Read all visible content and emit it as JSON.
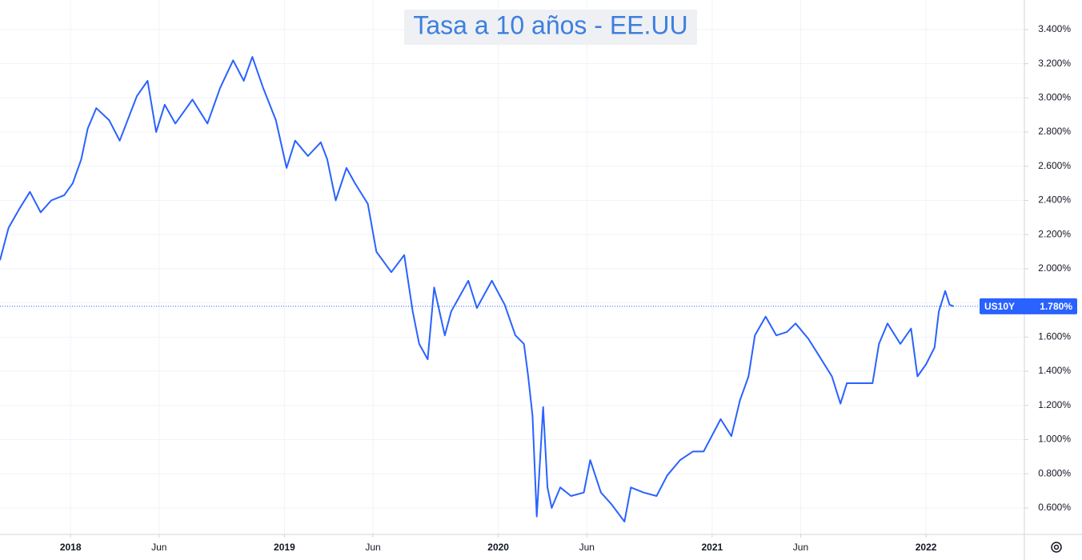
{
  "chart_data": {
    "type": "line",
    "title": "Tasa a 10 años - EE.UU",
    "x": [
      2017.67,
      2017.71,
      2017.76,
      2017.81,
      2017.86,
      2017.91,
      2017.97,
      2018.01,
      2018.05,
      2018.08,
      2018.12,
      2018.18,
      2018.23,
      2018.31,
      2018.36,
      2018.4,
      2018.44,
      2018.49,
      2018.57,
      2018.64,
      2018.7,
      2018.76,
      2018.81,
      2018.85,
      2018.9,
      2018.96,
      2019.01,
      2019.05,
      2019.11,
      2019.17,
      2019.2,
      2019.24,
      2019.29,
      2019.33,
      2019.39,
      2019.43,
      2019.5,
      2019.56,
      2019.6,
      2019.63,
      2019.67,
      2019.7,
      2019.75,
      2019.78,
      2019.86,
      2019.9,
      2019.97,
      2020.03,
      2020.08,
      2020.12,
      2020.14,
      2020.16,
      2020.18,
      2020.21,
      2020.23,
      2020.25,
      2020.29,
      2020.34,
      2020.4,
      2020.43,
      2020.48,
      2020.53,
      2020.59,
      2020.62,
      2020.68,
      2020.74,
      2020.79,
      2020.85,
      2020.91,
      2020.96,
      2021.04,
      2021.09,
      2021.13,
      2021.17,
      2021.2,
      2021.25,
      2021.3,
      2021.35,
      2021.39,
      2021.45,
      2021.5,
      2021.56,
      2021.6,
      2021.63,
      2021.69,
      2021.75,
      2021.78,
      2021.82,
      2021.88,
      2021.93,
      2021.96,
      2022.0,
      2022.04,
      2022.06,
      2022.09,
      2022.11,
      2022.13
    ],
    "series": [
      {
        "name": "US10Y",
        "color": "#2962ff",
        "values": [
          2.05,
          2.24,
          2.35,
          2.45,
          2.33,
          2.4,
          2.43,
          2.5,
          2.64,
          2.82,
          2.94,
          2.87,
          2.75,
          3.01,
          3.1,
          2.8,
          2.96,
          2.85,
          2.99,
          2.85,
          3.06,
          3.22,
          3.1,
          3.24,
          3.06,
          2.87,
          2.59,
          2.75,
          2.66,
          2.74,
          2.64,
          2.4,
          2.59,
          2.5,
          2.38,
          2.1,
          1.98,
          2.08,
          1.75,
          1.56,
          1.47,
          1.89,
          1.61,
          1.75,
          1.93,
          1.77,
          1.93,
          1.79,
          1.61,
          1.56,
          1.37,
          1.14,
          0.55,
          1.19,
          0.72,
          0.6,
          0.72,
          0.67,
          0.69,
          0.88,
          0.69,
          0.62,
          0.52,
          0.72,
          0.69,
          0.67,
          0.79,
          0.88,
          0.93,
          0.93,
          1.12,
          1.02,
          1.23,
          1.37,
          1.61,
          1.72,
          1.61,
          1.63,
          1.68,
          1.59,
          1.49,
          1.37,
          1.21,
          1.33,
          1.33,
          1.33,
          1.56,
          1.68,
          1.56,
          1.65,
          1.37,
          1.44,
          1.54,
          1.75,
          1.87,
          1.79,
          1.78
        ]
      }
    ],
    "last_value": {
      "value": 1.78,
      "label": "1.780%"
    },
    "xlim": [
      2017.67,
      2022.46
    ],
    "xticks": [
      {
        "value": 2018,
        "label": "2018"
      },
      {
        "value": 2018.414,
        "label": "Jun"
      },
      {
        "value": 2019,
        "label": "2019"
      },
      {
        "value": 2019.414,
        "label": "Jun"
      },
      {
        "value": 2020,
        "label": "2020"
      },
      {
        "value": 2020.414,
        "label": "Jun"
      },
      {
        "value": 2021,
        "label": "2021"
      },
      {
        "value": 2021.414,
        "label": "Jun"
      },
      {
        "value": 2022,
        "label": "2022"
      }
    ],
    "ylim": [
      0.445,
      3.573
    ],
    "yticks": [
      {
        "value": 0.6,
        "label": "0.600%"
      },
      {
        "value": 0.8,
        "label": "0.800%"
      },
      {
        "value": 1.0,
        "label": "1.000%"
      },
      {
        "value": 1.2,
        "label": "1.200%"
      },
      {
        "value": 1.4,
        "label": "1.400%"
      },
      {
        "value": 1.6,
        "label": "1.600%"
      },
      {
        "value": 1.8,
        "label": "1.800%"
      },
      {
        "value": 2.0,
        "label": "2.000%"
      },
      {
        "value": 2.2,
        "label": "2.200%"
      },
      {
        "value": 2.4,
        "label": "2.400%"
      },
      {
        "value": 2.6,
        "label": "2.600%"
      },
      {
        "value": 2.8,
        "label": "2.800%"
      },
      {
        "value": 3.0,
        "label": "3.000%"
      },
      {
        "value": 3.2,
        "label": "3.200%"
      },
      {
        "value": 3.4,
        "label": "3.400%"
      }
    ],
    "grid": true
  }
}
